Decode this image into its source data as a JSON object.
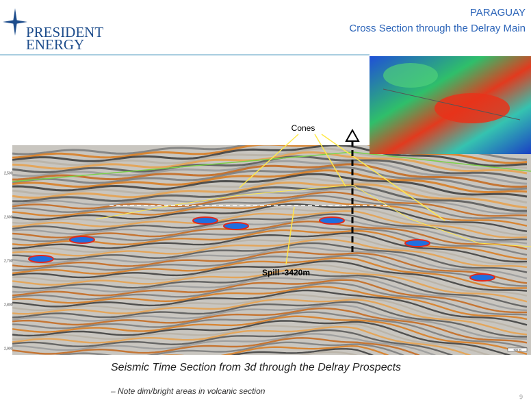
{
  "logo": {
    "line1": "PRESIDENT",
    "line2": "ENERGY"
  },
  "header": {
    "country": "PARAGUAY",
    "title": "Cross Section through the Delray  Main"
  },
  "annotations": {
    "cones": "Cones",
    "spill": "Spill -3420m"
  },
  "section_axis": [
    "2,500",
    "2,600",
    "2,700",
    "2,800",
    "2,900"
  ],
  "scale_bar": "900 m",
  "caption": "Seismic Time Section from 3d through the Delray Prospects",
  "note": "– Note dim/bright areas in volcanic section",
  "page_number": "9"
}
